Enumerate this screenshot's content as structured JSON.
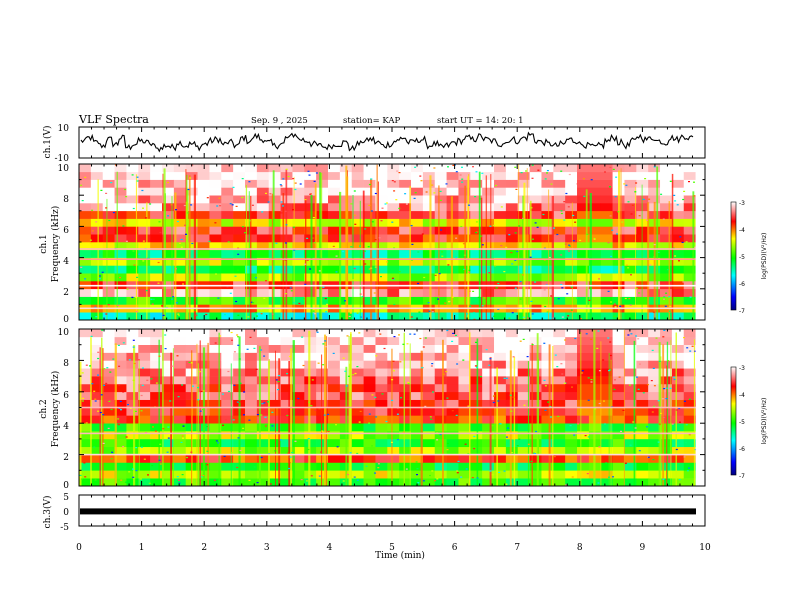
{
  "header": {
    "title": "VLF Spectra",
    "date": "Sep. 9 , 2025",
    "station": "station= KAP",
    "start": "start  UT =    14: 20: 1"
  },
  "colors": {
    "frame": "#000000",
    "trace": "#000000",
    "colormap": [
      "#000080",
      "#0000ff",
      "#00ffff",
      "#00ff00",
      "#ffff00",
      "#ff0000",
      "#ffc0c0",
      "#ffffff"
    ]
  },
  "chart_data": [
    {
      "type": "line",
      "id": "ch1-waveform",
      "ylabel": "ch.1(V)",
      "ylim": [
        -10,
        10
      ],
      "ytick_labels": [
        "10",
        "-10"
      ],
      "xlim": [
        0,
        10
      ],
      "values": [
        1,
        3,
        0,
        -2,
        2,
        -1,
        3,
        -3,
        -1,
        1,
        0,
        -2,
        -4,
        -2,
        -3,
        0,
        -2,
        -1,
        -3,
        -1,
        1,
        2,
        -1,
        0,
        -2,
        3,
        1,
        4,
        2,
        0,
        -2,
        -1,
        3,
        5,
        2,
        1,
        -1,
        -2,
        -3,
        -2,
        -1,
        0,
        -4,
        -1,
        1,
        2,
        0,
        -2,
        -1,
        1,
        3,
        0,
        1,
        2,
        -2,
        -1,
        -3,
        -2,
        0,
        1,
        3,
        2,
        4,
        2,
        1,
        -1,
        0,
        2,
        1,
        3,
        5,
        1,
        0,
        -1,
        -2,
        -1,
        2,
        1,
        -1,
        -2,
        -3,
        -2,
        1,
        3,
        0,
        -2,
        1,
        4,
        2,
        3,
        1,
        0,
        3,
        2,
        4,
        3
      ]
    },
    {
      "type": "heatmap",
      "id": "ch1-spectrogram",
      "ylabel": "ch.1",
      "ylabel2": "Frequency (kHz)",
      "ylim": [
        0,
        10
      ],
      "ytick_labels": [
        "0",
        "2",
        "4",
        "6",
        "8",
        "10"
      ],
      "xlim": [
        0,
        10
      ],
      "colorbar": {
        "range": [
          -7,
          -3
        ],
        "tick_labels": [
          "-3",
          "-4",
          "-5",
          "-6",
          "-7"
        ],
        "label": "log(PSD)(V²/Hz)"
      },
      "background_levels": [
        -5.5,
        -4.2,
        -5.0,
        -3.3,
        -3.6,
        -4.6,
        -5.3,
        -4.6,
        -5.3,
        -4.3,
        -3.7,
        -3.6,
        -4.4,
        -3.6,
        -3.3,
        -3.2,
        -3.15,
        -3.1,
        -3.05,
        -3.0
      ],
      "lines": [
        {
          "freq": 2.2,
          "level": -3.0
        },
        {
          "freq": 0.75,
          "level": -3.1
        },
        {
          "freq": 4.55,
          "level": -3.2
        },
        {
          "freq": 3.9,
          "level": -3.3
        }
      ]
    },
    {
      "type": "heatmap",
      "id": "ch2-spectrogram",
      "ylabel": "ch.2",
      "ylabel2": "Frequency (kHz)",
      "ylim": [
        0,
        10
      ],
      "ytick_labels": [
        "0",
        "2",
        "4",
        "6",
        "8",
        "10"
      ],
      "xlim": [
        0,
        10
      ],
      "colorbar": {
        "range": [
          -7,
          -3
        ],
        "tick_labels": [
          "-3",
          "-4",
          "-5",
          "-6",
          "-7"
        ],
        "label": "log(PSD)(V²/Hz)"
      },
      "background_levels": [
        -5.0,
        -4.5,
        -5.1,
        -3.8,
        -4.6,
        -5.1,
        -4.6,
        -5.0,
        -3.8,
        -3.7,
        -3.6,
        -3.5,
        -3.5,
        -3.4,
        -3.3,
        -3.2,
        -3.15,
        -3.1,
        -3.05,
        -3.0
      ],
      "lines": [
        {
          "freq": 2.0,
          "level": -3.1
        },
        {
          "freq": 3.35,
          "level": -3.2
        },
        {
          "freq": 5.0,
          "level": -3.2
        }
      ]
    },
    {
      "type": "line",
      "id": "ch3-waveform",
      "ylabel": "ch.3(V)",
      "ylim": [
        -5,
        5
      ],
      "ytick_labels": [
        "5",
        "0",
        "-5"
      ],
      "xlim": [
        0,
        10
      ],
      "values": [
        -0.3,
        -0.3
      ]
    }
  ],
  "xaxis": {
    "label": "Time (min)",
    "tick_labels": [
      "0",
      "1",
      "2",
      "3",
      "4",
      "5",
      "6",
      "7",
      "8",
      "9",
      "10"
    ]
  }
}
